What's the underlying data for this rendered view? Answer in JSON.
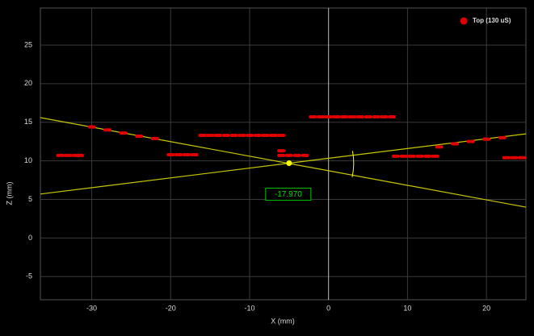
{
  "chart_data": {
    "type": "scatter",
    "x_label": "X (mm)",
    "y_label": "Z (mm)",
    "xlim": [
      -36.5,
      25
    ],
    "ylim": [
      -8,
      29.8
    ],
    "xticks": [
      -30,
      -20,
      -10,
      0,
      10,
      20
    ],
    "yticks": [
      -5,
      0,
      5,
      10,
      15,
      20,
      25
    ],
    "grid": true,
    "legend": "top-right",
    "series": [
      {
        "name": "Top (130 uS)",
        "color": "#e00000",
        "x": [
          -34,
          -33,
          -32,
          -31.5,
          -20,
          -19,
          -18,
          -17,
          -16,
          -15,
          -14,
          -13,
          -12,
          -11,
          -10,
          -9,
          -8,
          -7,
          -6,
          -6,
          -6,
          -5,
          -4,
          -3,
          -2,
          -1,
          0,
          1,
          2,
          3,
          4,
          5,
          6,
          7,
          8,
          8.5,
          9.5,
          10.5,
          11.5,
          12.5,
          13.5,
          14,
          16,
          18,
          20,
          22,
          -30,
          -28,
          -26,
          -24,
          -22,
          22.5,
          23.5,
          24.5
        ],
        "values": [
          10.7,
          10.7,
          10.7,
          10.7,
          10.8,
          10.8,
          10.8,
          10.8,
          13.3,
          13.3,
          13.3,
          13.3,
          13.3,
          13.3,
          13.3,
          13.3,
          13.3,
          13.3,
          13.3,
          11.3,
          10.7,
          10.7,
          10.7,
          10.7,
          15.7,
          15.7,
          15.7,
          15.7,
          15.7,
          15.7,
          15.7,
          15.7,
          15.7,
          15.7,
          15.7,
          10.6,
          10.6,
          10.6,
          10.6,
          10.6,
          10.6,
          11.8,
          12.2,
          12.5,
          12.8,
          13.0,
          14.4,
          14.0,
          13.6,
          13.2,
          12.9,
          10.4,
          10.4,
          10.4
        ]
      }
    ],
    "lines": [
      {
        "color": "#c8c800",
        "x": [
          -36.5,
          25
        ],
        "values": [
          15.6,
          4.0
        ]
      },
      {
        "color": "#c8c800",
        "x": [
          -36.5,
          25
        ],
        "values": [
          5.7,
          13.5
        ]
      }
    ],
    "intersection": {
      "x": -5,
      "value": 9.7,
      "color": "#ffff00"
    },
    "angle_label": "-17.970"
  }
}
